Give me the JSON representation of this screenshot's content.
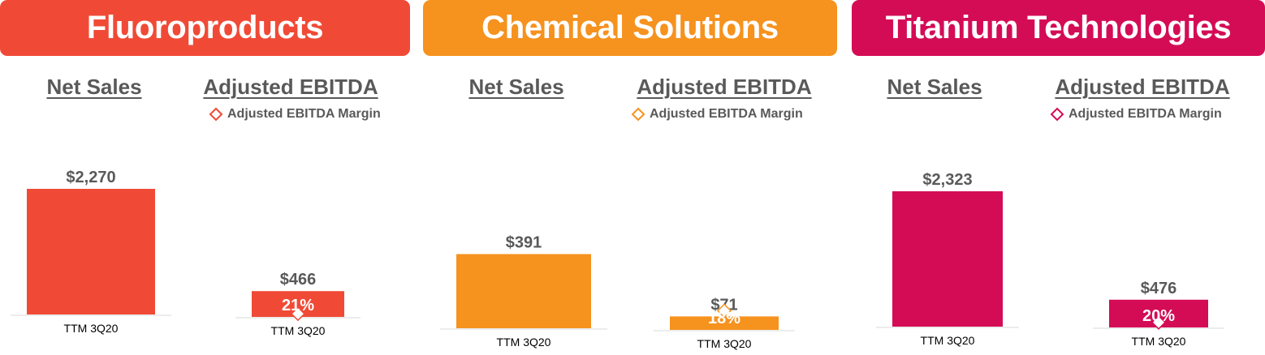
{
  "segments": [
    {
      "name": "Fluoroproducts",
      "color": "#f04a36",
      "net_sales_heading": "Net Sales",
      "ebitda_heading": "Adjusted EBITDA",
      "legend_label": "Adjusted EBITDA Margin"
    },
    {
      "name": "Chemical Solutions",
      "color": "#f6921e",
      "net_sales_heading": "Net Sales",
      "ebitda_heading": "Adjusted EBITDA",
      "legend_label": "Adjusted EBITDA Margin"
    },
    {
      "name": "Titanium Technologies",
      "color": "#d40c56",
      "net_sales_heading": "Net Sales",
      "ebitda_heading": "Adjusted EBITDA",
      "legend_label": "Adjusted EBITDA Margin"
    }
  ],
  "chart_data": [
    {
      "type": "bar",
      "segment": "Fluoroproducts",
      "title": "Net Sales",
      "categories": [
        "TTM 3Q20"
      ],
      "values": [
        2270
      ],
      "data_labels": [
        "$2,270"
      ],
      "color": "#f04a36"
    },
    {
      "type": "bar",
      "segment": "Fluoroproducts",
      "title": "Adjusted EBITDA",
      "categories": [
        "TTM 3Q20"
      ],
      "values": [
        466
      ],
      "data_labels": [
        "$466"
      ],
      "margin_values": [
        21
      ],
      "margin_labels": [
        "21%"
      ],
      "legend": [
        "Adjusted EBITDA Margin"
      ],
      "color": "#f04a36"
    },
    {
      "type": "bar",
      "segment": "Chemical Solutions",
      "title": "Net Sales",
      "categories": [
        "TTM 3Q20"
      ],
      "values": [
        391
      ],
      "data_labels": [
        "$391"
      ],
      "color": "#f6921e"
    },
    {
      "type": "bar",
      "segment": "Chemical Solutions",
      "title": "Adjusted EBITDA",
      "categories": [
        "TTM 3Q20"
      ],
      "values": [
        71
      ],
      "data_labels": [
        "$71"
      ],
      "margin_values": [
        18
      ],
      "margin_labels": [
        "18%"
      ],
      "legend": [
        "Adjusted EBITDA Margin"
      ],
      "color": "#f6921e"
    },
    {
      "type": "bar",
      "segment": "Titanium Technologies",
      "title": "Net Sales",
      "categories": [
        "TTM 3Q20"
      ],
      "values": [
        2323
      ],
      "data_labels": [
        "$2,323"
      ],
      "color": "#d40c56"
    },
    {
      "type": "bar",
      "segment": "Titanium Technologies",
      "title": "Adjusted EBITDA",
      "categories": [
        "TTM 3Q20"
      ],
      "values": [
        476
      ],
      "data_labels": [
        "$476"
      ],
      "margin_values": [
        20
      ],
      "margin_labels": [
        "20%"
      ],
      "legend": [
        "Adjusted EBITDA Margin"
      ],
      "color": "#d40c56"
    }
  ]
}
